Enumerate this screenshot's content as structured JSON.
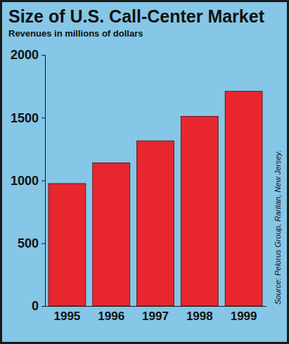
{
  "chart_data": {
    "type": "bar",
    "title": "Size of U.S. Call-Center Market",
    "subtitle": "Revenues in millions of dollars",
    "annotations": [
      "Source: Pelorus Group, Raritan, New Jersey."
    ],
    "categories": [
      "1995",
      "1996",
      "1997",
      "1998",
      "1999"
    ],
    "values": [
      975,
      1140,
      1315,
      1510,
      1710
    ],
    "color": "#e8262d",
    "ylim": [
      0,
      2000
    ],
    "yticks": [
      0,
      500,
      1000,
      1500,
      2000
    ],
    "grid": false
  }
}
